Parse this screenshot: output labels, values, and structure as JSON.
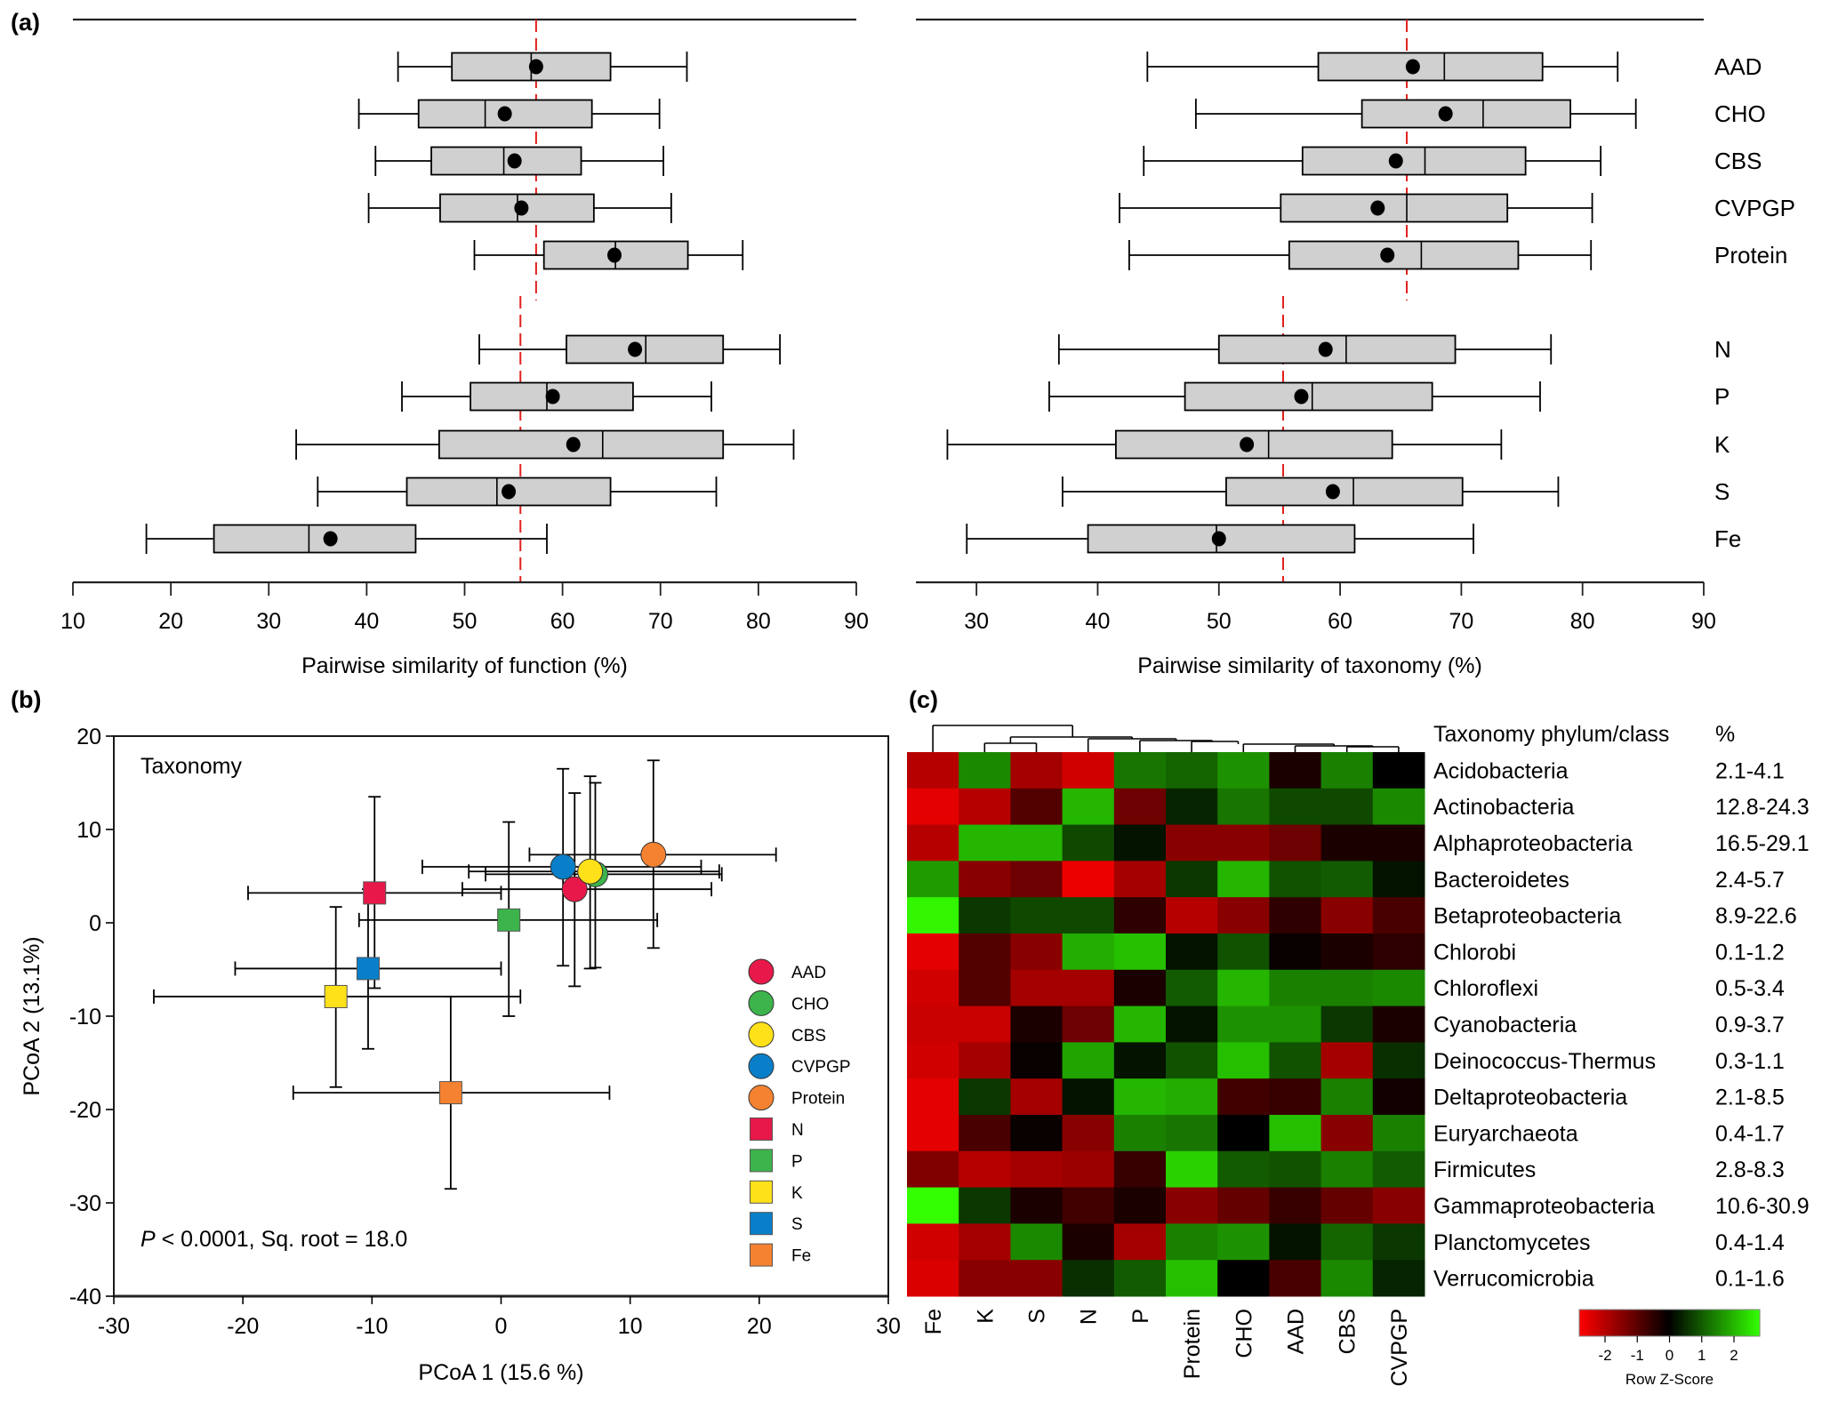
{
  "panel_labels": {
    "a": "(a)",
    "b": "(b)",
    "c": "(c)"
  },
  "chart_data": [
    {
      "type": "boxplot",
      "id": "function",
      "xlabel": "Pairwise similarity of function (%)",
      "xlim": [
        10,
        90
      ],
      "xticks": [
        10,
        20,
        30,
        40,
        50,
        60,
        70,
        80,
        90
      ],
      "orientation": "horizontal",
      "reference_lines": [
        {
          "group": "substrate",
          "value": 57.3,
          "color": "#e0201c",
          "style": "dashed"
        },
        {
          "group": "nutrient",
          "value": 55.7,
          "color": "#e0201c",
          "style": "dashed"
        }
      ],
      "series": [
        {
          "name": "AAD",
          "group": "substrate",
          "whisker_low": 43.2,
          "q1": 48.7,
          "median": 56.8,
          "q3": 64.9,
          "whisker_high": 72.7,
          "mean": 57.3
        },
        {
          "name": "CHO",
          "group": "substrate",
          "whisker_low": 39.2,
          "q1": 45.3,
          "median": 52.1,
          "q3": 63.0,
          "whisker_high": 69.9,
          "mean": 54.1
        },
        {
          "name": "CBS",
          "group": "substrate",
          "whisker_low": 40.9,
          "q1": 46.6,
          "median": 54.0,
          "q3": 61.9,
          "whisker_high": 70.3,
          "mean": 55.1
        },
        {
          "name": "CVPGP",
          "group": "substrate",
          "whisker_low": 40.2,
          "q1": 47.5,
          "median": 55.4,
          "q3": 63.2,
          "whisker_high": 71.1,
          "mean": 55.8
        },
        {
          "name": "Protein",
          "group": "substrate",
          "whisker_low": 51.0,
          "q1": 58.1,
          "median": 65.4,
          "q3": 72.8,
          "whisker_high": 78.4,
          "mean": 65.3
        },
        {
          "name": "N",
          "group": "nutrient",
          "whisker_low": 51.5,
          "q1": 60.4,
          "median": 68.5,
          "q3": 76.4,
          "whisker_high": 82.2,
          "mean": 67.4
        },
        {
          "name": "P",
          "group": "nutrient",
          "whisker_low": 43.6,
          "q1": 50.6,
          "median": 58.4,
          "q3": 67.2,
          "whisker_high": 75.2,
          "mean": 59.0
        },
        {
          "name": "K",
          "group": "nutrient",
          "whisker_low": 32.8,
          "q1": 47.4,
          "median": 64.1,
          "q3": 76.4,
          "whisker_high": 83.6,
          "mean": 61.1
        },
        {
          "name": "S",
          "group": "nutrient",
          "whisker_low": 35.0,
          "q1": 44.1,
          "median": 53.3,
          "q3": 64.9,
          "whisker_high": 75.7,
          "mean": 54.5
        },
        {
          "name": "Fe",
          "group": "nutrient",
          "whisker_low": 17.5,
          "q1": 24.4,
          "median": 34.1,
          "q3": 45.0,
          "whisker_high": 58.4,
          "mean": 36.3
        }
      ]
    },
    {
      "type": "boxplot",
      "id": "taxonomy",
      "xlabel": "Pairwise similarity of taxonomy (%)",
      "xlim": [
        25,
        90
      ],
      "xticks": [
        30,
        40,
        50,
        60,
        70,
        80,
        90
      ],
      "orientation": "horizontal",
      "reference_lines": [
        {
          "group": "substrate",
          "value": 65.5,
          "color": "#e0201c",
          "style": "dashed"
        },
        {
          "group": "nutrient",
          "value": 55.3,
          "color": "#e0201c",
          "style": "dashed"
        }
      ],
      "series": [
        {
          "name": "AAD",
          "group": "substrate",
          "whisker_low": 44.1,
          "q1": 58.2,
          "median": 68.6,
          "q3": 76.7,
          "whisker_high": 82.9,
          "mean": 66.0
        },
        {
          "name": "CHO",
          "group": "substrate",
          "whisker_low": 48.1,
          "q1": 61.8,
          "median": 71.8,
          "q3": 79.0,
          "whisker_high": 84.4,
          "mean": 68.7
        },
        {
          "name": "CBS",
          "group": "substrate",
          "whisker_low": 43.8,
          "q1": 56.9,
          "median": 67.0,
          "q3": 75.3,
          "whisker_high": 81.5,
          "mean": 64.6
        },
        {
          "name": "CVPGP",
          "group": "substrate",
          "whisker_low": 41.8,
          "q1": 55.1,
          "median": 65.5,
          "q3": 73.8,
          "whisker_high": 80.8,
          "mean": 63.1
        },
        {
          "name": "Protein",
          "group": "substrate",
          "whisker_low": 42.6,
          "q1": 55.8,
          "median": 66.7,
          "q3": 74.7,
          "whisker_high": 80.7,
          "mean": 63.9
        },
        {
          "name": "N",
          "group": "nutrient",
          "whisker_low": 36.8,
          "q1": 50.0,
          "median": 60.5,
          "q3": 69.5,
          "whisker_high": 77.4,
          "mean": 58.8
        },
        {
          "name": "P",
          "group": "nutrient",
          "whisker_low": 36.0,
          "q1": 47.2,
          "median": 57.7,
          "q3": 67.6,
          "whisker_high": 76.5,
          "mean": 56.8
        },
        {
          "name": "K",
          "group": "nutrient",
          "whisker_low": 27.6,
          "q1": 41.5,
          "median": 54.1,
          "q3": 64.3,
          "whisker_high": 73.3,
          "mean": 52.3
        },
        {
          "name": "S",
          "group": "nutrient",
          "whisker_low": 37.1,
          "q1": 50.6,
          "median": 61.1,
          "q3": 70.1,
          "whisker_high": 78.0,
          "mean": 59.4
        },
        {
          "name": "Fe",
          "group": "nutrient",
          "whisker_low": 29.2,
          "q1": 39.2,
          "median": 49.8,
          "q3": 61.2,
          "whisker_high": 71.0,
          "mean": 50.0
        }
      ]
    },
    {
      "type": "scatter",
      "id": "pcoa",
      "title": "Taxonomy",
      "xlabel": "PCoA 1 (15.6 %)",
      "ylabel": "PCoA 2 (13.1%)",
      "xlim": [
        -30,
        30
      ],
      "ylim": [
        -40,
        20
      ],
      "xticks": [
        -30,
        -20,
        -10,
        0,
        10,
        20,
        30
      ],
      "yticks": [
        -40,
        -30,
        -20,
        -10,
        0,
        10,
        20
      ],
      "annotation": {
        "p_symbol": "P",
        "text": " < 0.0001, Sq. root = 18.0"
      },
      "legend_position": "bottom-right",
      "points": [
        {
          "name": "AAD",
          "marker": "circle",
          "color": "#e8194a",
          "x": 5.7,
          "y": 3.6,
          "x_err": [
            -3.0,
            16.3
          ],
          "y_err": [
            -6.8,
            13.9
          ]
        },
        {
          "name": "CHO",
          "marker": "circle",
          "color": "#3cb44b",
          "x": 7.3,
          "y": 5.2,
          "x_err": [
            -1.2,
            17.1
          ],
          "y_err": [
            -4.8,
            15.0
          ]
        },
        {
          "name": "CBS",
          "marker": "circle",
          "color": "#ffe119",
          "x": 6.9,
          "y": 5.5,
          "x_err": [
            -2.5,
            16.9
          ],
          "y_err": [
            -4.9,
            15.7
          ]
        },
        {
          "name": "CVPGP",
          "marker": "circle",
          "color": "#0a7fc9",
          "x": 4.8,
          "y": 6.0,
          "x_err": [
            -6.1,
            15.5
          ],
          "y_err": [
            -4.6,
            16.5
          ]
        },
        {
          "name": "Protein",
          "marker": "circle",
          "color": "#f58231",
          "x": 11.8,
          "y": 7.3,
          "x_err": [
            2.2,
            21.3
          ],
          "y_err": [
            -2.7,
            17.4
          ]
        },
        {
          "name": "N",
          "marker": "square",
          "color": "#e8194a",
          "x": -9.8,
          "y": 3.2,
          "x_err": [
            -19.6,
            0.0
          ],
          "y_err": [
            -7.0,
            13.5
          ]
        },
        {
          "name": "P",
          "marker": "square",
          "color": "#3cb44b",
          "x": 0.6,
          "y": 0.3,
          "x_err": [
            -11.0,
            12.1
          ],
          "y_err": [
            -10.0,
            10.8
          ]
        },
        {
          "name": "K",
          "marker": "square",
          "color": "#ffe119",
          "x": -12.8,
          "y": -7.9,
          "x_err": [
            -26.9,
            1.5
          ],
          "y_err": [
            -17.6,
            1.7
          ]
        },
        {
          "name": "S",
          "marker": "square",
          "color": "#0a7fc9",
          "x": -10.3,
          "y": -4.9,
          "x_err": [
            -20.6,
            0.0
          ],
          "y_err": [
            -13.5,
            3.6
          ]
        },
        {
          "name": "Fe",
          "marker": "square",
          "color": "#f58231",
          "x": -3.9,
          "y": -18.2,
          "x_err": [
            -16.1,
            8.4
          ],
          "y_err": [
            -28.5,
            -7.9
          ]
        }
      ]
    },
    {
      "type": "heatmap",
      "id": "taxa-heatmap",
      "columns": [
        "Fe",
        "K",
        "S",
        "N",
        "P",
        "Protein",
        "CHO",
        "AAD",
        "CBS",
        "CVPGP"
      ],
      "row_header": "Taxonomy phylum/class",
      "pct_header": "%",
      "rows": [
        {
          "name": "Acidobacteria",
          "pct": "2.1-4.1",
          "values": [
            -2.0,
            1.5,
            -1.8,
            -2.3,
            1.3,
            1.1,
            1.6,
            -0.3,
            1.4,
            0.0
          ]
        },
        {
          "name": "Actinobacteria",
          "pct": "12.8-24.3",
          "values": [
            -2.5,
            -2.0,
            -0.9,
            2.0,
            -1.2,
            0.4,
            1.3,
            0.8,
            0.8,
            1.5
          ]
        },
        {
          "name": "Alphaproteobacteria",
          "pct": "16.5-29.1",
          "values": [
            -2.0,
            2.0,
            2.0,
            0.8,
            0.2,
            -1.5,
            -1.5,
            -1.2,
            -0.3,
            -0.3
          ]
        },
        {
          "name": "Bacteroidetes",
          "pct": "2.4-5.7",
          "values": [
            1.7,
            -1.5,
            -1.2,
            -2.6,
            -1.8,
            0.6,
            2.0,
            0.9,
            1.0,
            0.2
          ]
        },
        {
          "name": "Betaproteobacteria",
          "pct": "8.9-22.6",
          "values": [
            2.7,
            0.6,
            0.8,
            0.8,
            -0.5,
            -2.0,
            -1.5,
            -0.5,
            -1.5,
            -0.8
          ]
        },
        {
          "name": "Chlorobi",
          "pct": "0.1-1.2",
          "values": [
            -2.5,
            -0.9,
            -1.5,
            1.9,
            2.1,
            0.2,
            0.9,
            -0.1,
            -0.3,
            -0.5
          ]
        },
        {
          "name": "Chloroflexi",
          "pct": "0.5-3.4",
          "values": [
            -2.3,
            -0.9,
            -1.8,
            -1.8,
            -0.3,
            1.0,
            2.0,
            1.4,
            1.4,
            1.5
          ]
        },
        {
          "name": "Cyanobacteria",
          "pct": "0.9-3.7",
          "values": [
            -2.2,
            -2.2,
            -0.3,
            -1.2,
            2.0,
            0.2,
            1.6,
            1.6,
            0.6,
            -0.3
          ]
        },
        {
          "name": "Deinococcus-Thermus",
          "pct": "0.3-1.1",
          "values": [
            -2.3,
            -1.8,
            -0.1,
            1.8,
            0.2,
            0.9,
            2.1,
            0.9,
            -1.8,
            0.5
          ]
        },
        {
          "name": "Deltaproteobacteria",
          "pct": "2.1-8.5",
          "values": [
            -2.5,
            0.6,
            -1.8,
            0.2,
            2.0,
            1.9,
            -0.7,
            -0.6,
            1.4,
            -0.2
          ]
        },
        {
          "name": "Euryarchaeota",
          "pct": "0.4-1.7",
          "values": [
            -2.5,
            -0.8,
            -0.1,
            -1.5,
            1.4,
            1.3,
            0.0,
            2.1,
            -1.5,
            1.4
          ]
        },
        {
          "name": "Firmicutes",
          "pct": "2.8-8.3",
          "values": [
            -1.4,
            -2.0,
            -1.8,
            -1.7,
            -0.6,
            2.3,
            1.0,
            0.9,
            1.4,
            1.0
          ]
        },
        {
          "name": "Gammaproteobacteria",
          "pct": "10.6-30.9",
          "values": [
            2.8,
            0.6,
            -0.3,
            -0.7,
            -0.3,
            -1.5,
            -1.1,
            -0.6,
            -1.1,
            -1.5
          ]
        },
        {
          "name": "Planctomycetes",
          "pct": "0.4-1.4",
          "values": [
            -2.3,
            -1.8,
            1.5,
            -0.3,
            -1.8,
            1.4,
            1.6,
            0.2,
            1.1,
            0.6
          ]
        },
        {
          "name": "Verrucomicrobia",
          "pct": "0.1-1.6",
          "values": [
            -2.4,
            -1.5,
            -1.5,
            0.5,
            1.0,
            2.1,
            0.0,
            -0.8,
            1.5,
            0.4
          ]
        }
      ],
      "colorbar": {
        "title": "Row Z-Score",
        "ticks": [
          -2,
          -1,
          0,
          1,
          2
        ],
        "range": [
          -2.8,
          2.8
        ],
        "low_color": "#ff0000",
        "mid_color": "#000000",
        "high_color": "#33ff00"
      },
      "dendrogram": "columns"
    }
  ]
}
